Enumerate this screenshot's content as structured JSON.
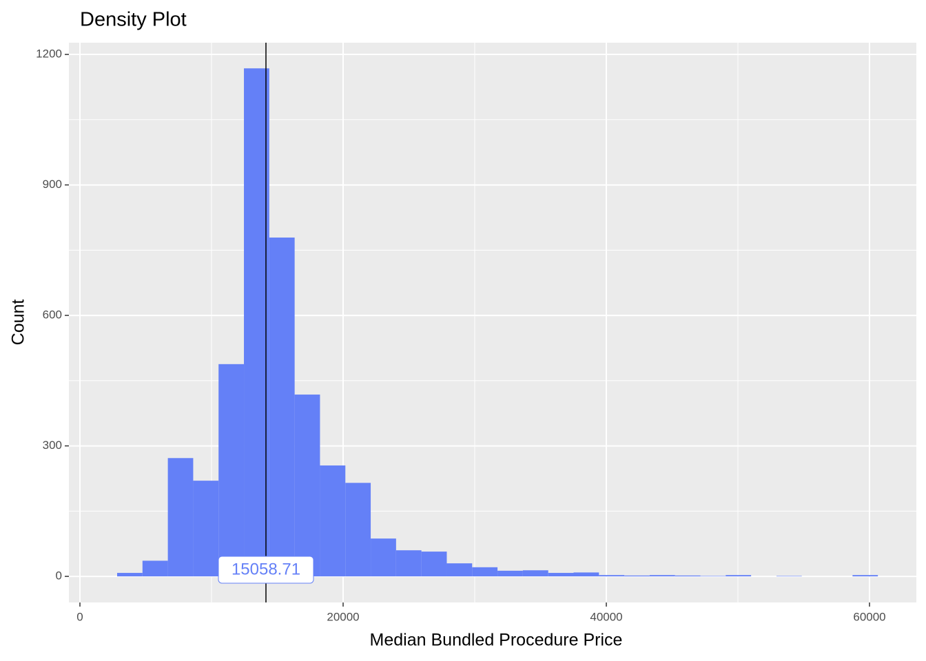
{
  "chart_data": {
    "type": "histogram",
    "title": "Density Plot",
    "x_label": "Median Bundled Procedure Price",
    "y_label": "Count",
    "bins": [
      2827,
      4754,
      6681,
      8608,
      10535,
      12462,
      14389,
      16316,
      18243,
      20170,
      22097,
      24024,
      25951,
      27878,
      29805,
      31732,
      33659,
      35586,
      37513,
      39440,
      41367,
      43294,
      45221,
      47148,
      49075,
      51002,
      52929,
      54856,
      56783,
      58710,
      60637
    ],
    "values": [
      8,
      36,
      272,
      220,
      488,
      1168,
      779,
      418,
      255,
      215,
      87,
      60,
      57,
      30,
      21,
      13,
      14,
      8,
      9,
      3,
      2,
      3,
      2,
      1,
      3,
      0,
      1,
      0,
      0,
      3
    ],
    "color": "#6480f7",
    "xlim": [
      -838,
      63560
    ],
    "ylim": [
      -60,
      1227
    ],
    "xticks": [
      0,
      20000,
      40000,
      60000
    ],
    "yticks": [
      0,
      300,
      600,
      900,
      1200
    ],
    "grid": true,
    "vline": 14136,
    "annotation": "15058.71"
  }
}
